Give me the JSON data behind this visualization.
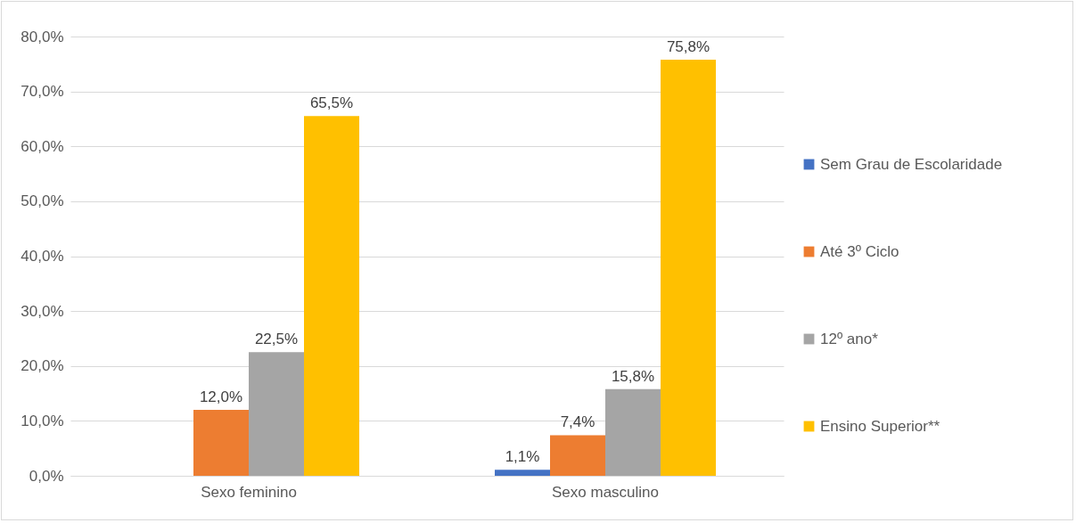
{
  "chart_data": {
    "type": "bar",
    "categories": [
      "Sexo feminino",
      "Sexo masculino"
    ],
    "series": [
      {
        "name": "Sem Grau de Escolaridade",
        "color": "#4472c4",
        "values": [
          null,
          1.1
        ],
        "value_labels": [
          null,
          "1,1%"
        ]
      },
      {
        "name": "Até 3º Ciclo",
        "color": "#ed7d31",
        "values": [
          12.0,
          7.4
        ],
        "value_labels": [
          "12,0%",
          "7,4%"
        ]
      },
      {
        "name": "12º ano*",
        "color": "#a5a5a5",
        "values": [
          22.5,
          15.8
        ],
        "value_labels": [
          "22,5%",
          "15,8%"
        ]
      },
      {
        "name": "Ensino Superior**",
        "color": "#ffc000",
        "values": [
          65.5,
          75.8
        ],
        "value_labels": [
          "65,5%",
          "75,8%"
        ]
      }
    ],
    "ylim": [
      0,
      80
    ],
    "yticks": [
      {
        "value": 0,
        "label": "0,0%"
      },
      {
        "value": 10,
        "label": "10,0%"
      },
      {
        "value": 20,
        "label": "20,0%"
      },
      {
        "value": 30,
        "label": "30,0%"
      },
      {
        "value": 40,
        "label": "40,0%"
      },
      {
        "value": 50,
        "label": "50,0%"
      },
      {
        "value": 60,
        "label": "60,0%"
      },
      {
        "value": 70,
        "label": "70,0%"
      },
      {
        "value": 80,
        "label": "80,0%"
      }
    ],
    "grid": "y",
    "legend": "right"
  }
}
